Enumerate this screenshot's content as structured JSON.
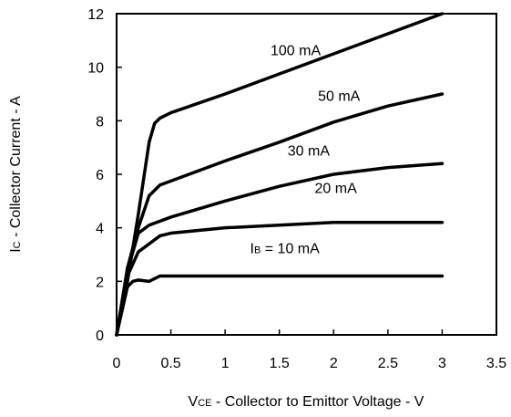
{
  "chart_data": {
    "type": "line",
    "xlabel": {
      "main": "V",
      "sub": "CE",
      "rest": " - Collector to Emittor Voltage - V"
    },
    "ylabel": {
      "main": "I",
      "sub": "C",
      "rest": " - Collector Current - A"
    },
    "xlim": [
      0,
      3.5
    ],
    "ylim": [
      0,
      12
    ],
    "xticks": [
      0,
      0.5,
      1,
      1.5,
      2,
      2.5,
      3,
      3.5
    ],
    "xtick_labels": [
      "0",
      "0.5",
      "1",
      "1.5",
      "2",
      "2.5",
      "3",
      "3.5"
    ],
    "yticks": [
      0,
      2,
      4,
      6,
      8,
      10,
      12
    ],
    "ytick_labels": [
      "0",
      "2",
      "4",
      "6",
      "8",
      "10",
      "12"
    ],
    "grid": false,
    "line_color": "#000000",
    "series": [
      {
        "name": "100 mA",
        "label_at": [
          1.65,
          10.45
        ],
        "points": [
          [
            0,
            0
          ],
          [
            0.1,
            2.0
          ],
          [
            0.2,
            4.5
          ],
          [
            0.3,
            7.2
          ],
          [
            0.35,
            7.9
          ],
          [
            0.4,
            8.1
          ],
          [
            0.5,
            8.3
          ],
          [
            1.0,
            9.0
          ],
          [
            1.5,
            9.75
          ],
          [
            2.0,
            10.5
          ],
          [
            2.5,
            11.25
          ],
          [
            3.0,
            12.0
          ]
        ]
      },
      {
        "name": "50 mA",
        "label_at": [
          2.05,
          8.75
        ],
        "points": [
          [
            0,
            0
          ],
          [
            0.1,
            2.5
          ],
          [
            0.2,
            4.0
          ],
          [
            0.3,
            5.2
          ],
          [
            0.4,
            5.6
          ],
          [
            0.5,
            5.75
          ],
          [
            1.0,
            6.5
          ],
          [
            1.5,
            7.2
          ],
          [
            2.0,
            7.95
          ],
          [
            2.5,
            8.55
          ],
          [
            3.0,
            9.0
          ]
        ]
      },
      {
        "name": "30 mA",
        "label_at": [
          1.77,
          6.7
        ],
        "points": [
          [
            0,
            0
          ],
          [
            0.1,
            2.4
          ],
          [
            0.2,
            3.8
          ],
          [
            0.3,
            4.1
          ],
          [
            0.5,
            4.4
          ],
          [
            1.0,
            5.0
          ],
          [
            1.5,
            5.55
          ],
          [
            2.0,
            6.0
          ],
          [
            2.5,
            6.25
          ],
          [
            3.0,
            6.4
          ]
        ]
      },
      {
        "name": "20 mA",
        "label_at": [
          2.02,
          5.3
        ],
        "points": [
          [
            0,
            0
          ],
          [
            0.1,
            2.2
          ],
          [
            0.2,
            3.1
          ],
          [
            0.3,
            3.4
          ],
          [
            0.4,
            3.7
          ],
          [
            0.5,
            3.8
          ],
          [
            1.0,
            4.0
          ],
          [
            2.0,
            4.2
          ],
          [
            3.0,
            4.2
          ]
        ]
      },
      {
        "name": "IB = 10 mA",
        "label_main": "I",
        "label_sub": "B",
        "label_rest": " = 10 mA",
        "label_at": [
          1.55,
          3.05
        ],
        "points": [
          [
            0,
            0
          ],
          [
            0.1,
            1.8
          ],
          [
            0.15,
            2.0
          ],
          [
            0.2,
            2.05
          ],
          [
            0.3,
            2.0
          ],
          [
            0.4,
            2.2
          ],
          [
            1.0,
            2.2
          ],
          [
            2.0,
            2.2
          ],
          [
            3.0,
            2.2
          ]
        ]
      }
    ]
  }
}
